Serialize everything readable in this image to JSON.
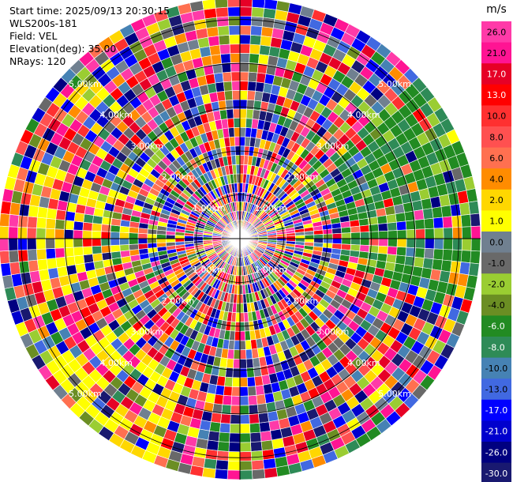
{
  "header": {
    "start_time": "Start time: 2025/09/13 20:30:15",
    "instrument": "WLS200s-181",
    "field": "Field: VEL",
    "elevation": "Elevation(deg): 35.00",
    "nrays": "NRays: 120"
  },
  "chart_data": {
    "type": "heatmap",
    "projection": "polar (PPI)",
    "range_rings_km": [
      1.0,
      2.0,
      3.0,
      4.0,
      5.0
    ],
    "ring_labels": [
      "1.00km",
      "2.00km",
      "3.00km",
      "4.00km",
      "5.00km"
    ],
    "nrays": 120,
    "colorbar": {
      "units": "m/s",
      "ticks": [
        "26.0",
        "21.0",
        "17.0",
        "13.0",
        "10.0",
        "8.0",
        "6.0",
        "4.0",
        "2.0",
        "1.0",
        "0.0",
        "-1.0",
        "-2.0",
        "-4.0",
        "-6.0",
        "-8.0",
        "-10.0",
        "-13.0",
        "-17.0",
        "-21.0",
        "-26.0",
        "-30.0"
      ],
      "colors": [
        "#ff3aa8",
        "#ff1493",
        "#e60026",
        "#ff0000",
        "#ff3030",
        "#ff5050",
        "#ff7050",
        "#ff8c00",
        "#ffd700",
        "#ffff00",
        "#708090",
        "#696969",
        "#9acd32",
        "#6b8e23",
        "#228b22",
        "#2e8b57",
        "#4682b4",
        "#4169e1",
        "#0000ff",
        "#0000cd",
        "#000080",
        "#191970"
      ]
    }
  }
}
